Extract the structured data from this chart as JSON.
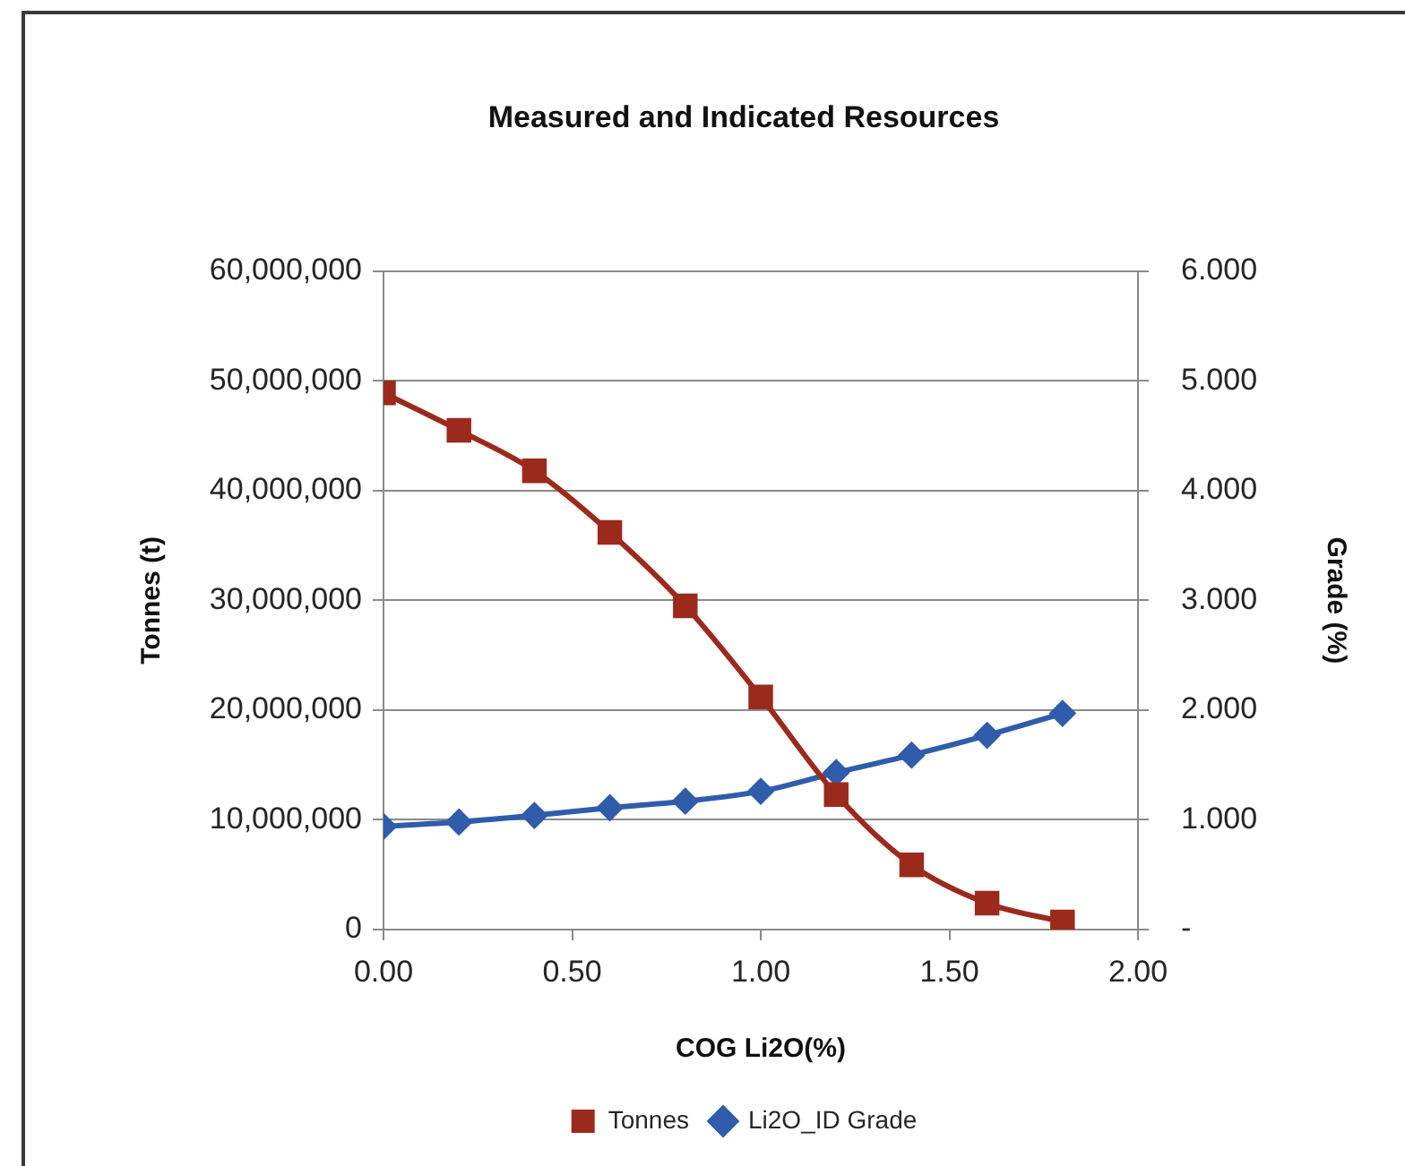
{
  "chart_data": {
    "type": "line",
    "title": "Measured and Indicated Resources",
    "xlabel": "COG Li2O(%)",
    "ylabel": "Tonnes (t)",
    "y2label": "Grade (%)",
    "x": [
      0,
      0.2,
      0.4,
      0.6,
      0.8,
      1.0,
      1.2,
      1.4,
      1.6,
      1.8
    ],
    "series": [
      {
        "name": "Tonnes",
        "color": "#9c2a1c",
        "marker": "square",
        "values": [
          48900000,
          45500000,
          41800000,
          36200000,
          29500000,
          21200000,
          12300000,
          5900000,
          2400000,
          700000
        ]
      },
      {
        "name": "Li2O_ID Grade",
        "color": "#2f5cab",
        "marker": "diamond",
        "axis": "y2",
        "values": [
          0.94,
          0.98,
          1.04,
          1.11,
          1.17,
          1.26,
          1.43,
          1.59,
          1.77,
          1.97
        ]
      }
    ],
    "xlim": [
      0,
      2
    ],
    "xticks": [
      {
        "value": 0,
        "label": "0.00"
      },
      {
        "value": 0.5,
        "label": "0.50"
      },
      {
        "value": 1,
        "label": "1.00"
      },
      {
        "value": 1.5,
        "label": "1.50"
      },
      {
        "value": 2,
        "label": "2.00"
      }
    ],
    "ylim": [
      0,
      60000000
    ],
    "yticks": [
      0,
      {
        "value": 10000000,
        "label": "10,000,000"
      },
      {
        "value": 20000000,
        "label": "20,000,000"
      },
      {
        "value": 30000000,
        "label": "30,000,000"
      },
      {
        "value": 40000000,
        "label": "40,000,000"
      },
      {
        "value": 50000000,
        "label": "50,000,000"
      },
      {
        "value": 60000000,
        "label": "60,000,000"
      }
    ],
    "y2lim": [
      0,
      6
    ],
    "y2ticks": [
      {
        "value": 0,
        "label": "-"
      },
      {
        "value": 1,
        "label": "1.000"
      },
      {
        "value": 2,
        "label": "2.000"
      },
      {
        "value": 3,
        "label": "3.000"
      },
      {
        "value": 4,
        "label": "4.000"
      },
      {
        "value": 5,
        "label": "5.000"
      },
      {
        "value": 6,
        "label": "6.000"
      }
    ],
    "grid": "y",
    "legend": "bottom"
  }
}
